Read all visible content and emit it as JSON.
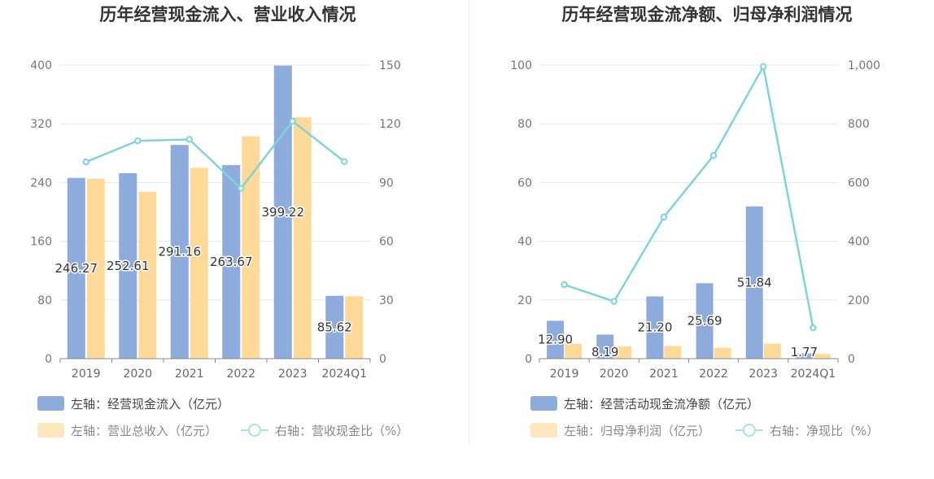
{
  "colors": {
    "bar_primary": "#8EACDB",
    "bar_secondary": "#FFD998",
    "line": "#7FD3DA",
    "grid": "#E3E7EF",
    "axis": "#888888"
  },
  "chart_data": [
    {
      "type": "bar",
      "title": "历年经营现金流入、营业收入情况",
      "categories": [
        "2019",
        "2020",
        "2021",
        "2022",
        "2023",
        "2024Q1"
      ],
      "left_axis": {
        "ylim": [
          0,
          400
        ],
        "ticks": [
          "0",
          "80",
          "160",
          "240",
          "320",
          "400"
        ]
      },
      "right_axis": {
        "ylim": [
          0,
          150
        ],
        "ticks": [
          "0",
          "30",
          "60",
          "90",
          "120",
          "150"
        ]
      },
      "series": [
        {
          "name": "左轴：经营现金流入（亿元）",
          "type": "bar",
          "axis": "left",
          "values": [
            246.27,
            252.61,
            291.16,
            263.67,
            399.22,
            85.62
          ],
          "labels": [
            "246.27",
            "252.61",
            "291.16",
            "263.67",
            "399.22",
            "85.62"
          ]
        },
        {
          "name": "左轴：营业总收入（亿元）",
          "type": "bar",
          "axis": "left",
          "values": [
            245,
            227,
            260,
            303,
            329,
            85
          ]
        },
        {
          "name": "右轴：营收现金比（%）",
          "type": "line",
          "axis": "right",
          "values": [
            100.5,
            111.3,
            112.0,
            87.0,
            121.3,
            100.7
          ]
        }
      ],
      "grid": true,
      "legend_position": "bottom-left"
    },
    {
      "type": "bar",
      "title": "历年经营现金流净额、归母净利润情况",
      "categories": [
        "2019",
        "2020",
        "2021",
        "2022",
        "2023",
        "2024Q1"
      ],
      "left_axis": {
        "ylim": [
          0,
          100
        ],
        "ticks": [
          "0",
          "20",
          "40",
          "60",
          "80",
          "100"
        ]
      },
      "right_axis": {
        "ylim": [
          0,
          1000
        ],
        "ticks": [
          "0",
          "200",
          "400",
          "600",
          "800",
          "1,000"
        ]
      },
      "series": [
        {
          "name": "左轴：经营活动现金流净额（亿元）",
          "type": "bar",
          "axis": "left",
          "values": [
            12.9,
            8.19,
            21.2,
            25.69,
            51.84,
            1.77
          ],
          "labels": [
            "12.90",
            "8.19",
            "21.20",
            "25.69",
            "51.84",
            "1.77"
          ]
        },
        {
          "name": "左轴：归母净利润（亿元）",
          "type": "bar",
          "axis": "left",
          "values": [
            5.0,
            4.2,
            4.3,
            3.7,
            5.1,
            1.6
          ]
        },
        {
          "name": "右轴：净现比（%）",
          "type": "line",
          "axis": "right",
          "values": [
            252,
            195,
            482,
            692,
            995,
            105
          ]
        }
      ],
      "grid": true,
      "legend_position": "bottom-left"
    }
  ]
}
